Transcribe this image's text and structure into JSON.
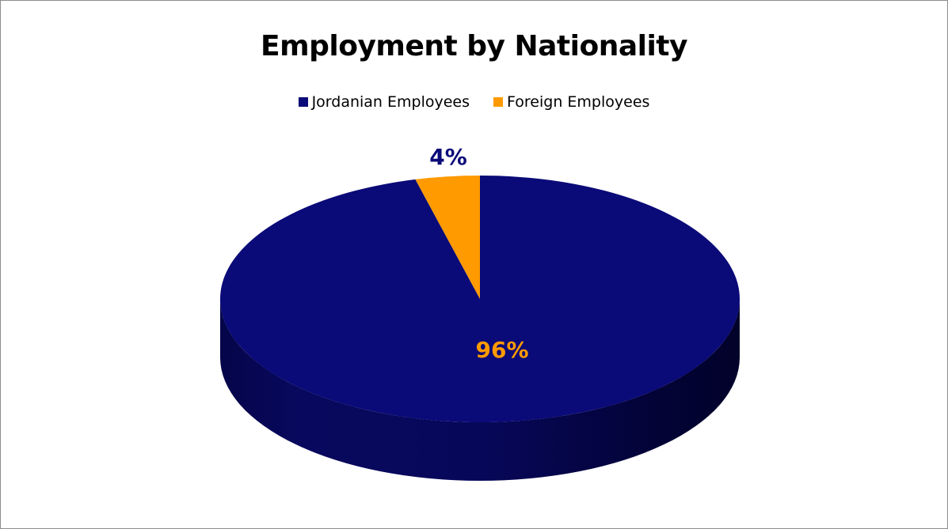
{
  "chart_data": {
    "type": "pie",
    "title": "Employment by Nationality",
    "categories": [
      "Jordanian Employees",
      "Foreign Employees"
    ],
    "values": [
      96,
      4
    ],
    "labels": [
      "96%",
      "4%"
    ],
    "colors": [
      "#0a0a78",
      "#ff9a00"
    ],
    "label_colors": [
      "#ff9a00",
      "#0a0a78"
    ],
    "legend_position": "top",
    "style": "3d"
  }
}
